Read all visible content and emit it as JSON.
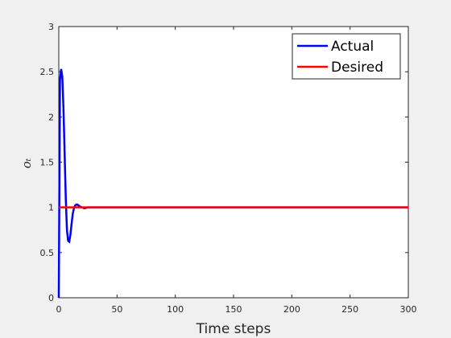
{
  "chart_data": {
    "type": "line",
    "x_label": "Time steps",
    "y_label": "oₜ",
    "xlim": [
      0,
      300
    ],
    "xticks": [
      0,
      50,
      100,
      150,
      200,
      250,
      300
    ],
    "ylim": [
      0,
      3
    ],
    "yticks": [
      0,
      0.5,
      1,
      1.5,
      2,
      2.5,
      3
    ],
    "legend": "upper right",
    "series": [
      {
        "name": "Actual",
        "color": "#0000ff",
        "x": [
          0,
          1,
          2,
          3,
          4,
          5,
          6,
          7,
          8,
          9,
          10,
          11,
          12,
          13,
          14,
          15,
          16,
          18,
          20,
          22,
          25,
          300
        ],
        "values": [
          0,
          2.4,
          2.53,
          2.45,
          2.1,
          1.6,
          1.1,
          0.75,
          0.63,
          0.62,
          0.7,
          0.82,
          0.93,
          0.99,
          1.02,
          1.03,
          1.03,
          1.01,
          1.0,
          0.99,
          1,
          1
        ]
      },
      {
        "name": "Desired",
        "color": "#ff0000",
        "x": [
          0,
          300
        ],
        "values": [
          1,
          1
        ]
      }
    ]
  }
}
